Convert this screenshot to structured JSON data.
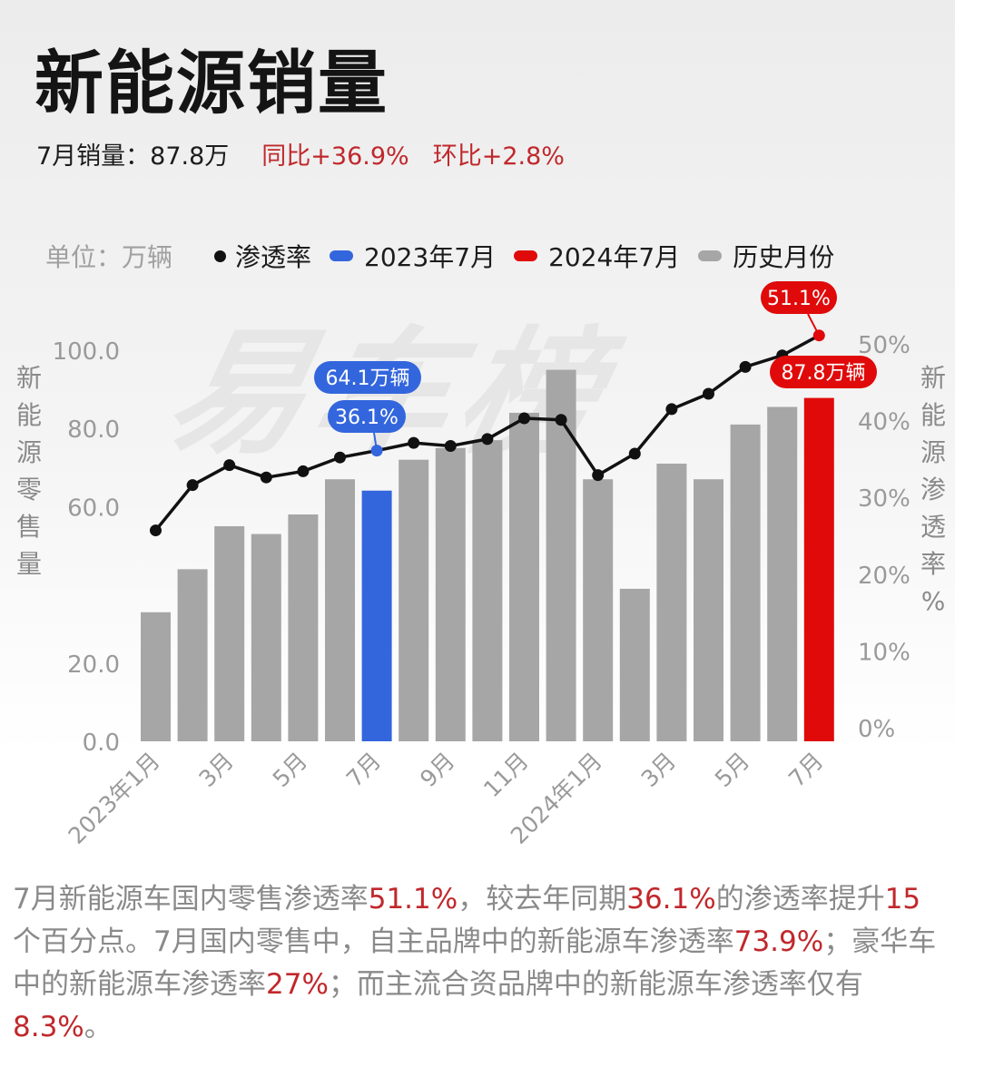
{
  "header": {
    "title": "新能源销量",
    "summary": "7月销量：87.8万",
    "yoy": "同比+36.9%",
    "mom": "环比+2.8%"
  },
  "legend": {
    "unit": "单位：万辆",
    "items": [
      "渗透率",
      "2023年7月",
      "2024年7月",
      "历史月份"
    ]
  },
  "y_axis_left_label": "新能源零售量",
  "y_axis_right_label": "新能源渗透率%",
  "colors": {
    "history": "#a6a6a6",
    "highlight_2023": "#3366dd",
    "highlight_2024": "#e00a0a",
    "line": "#111111",
    "red_text": "#c0282c"
  },
  "chart_data": {
    "type": "bar",
    "categories": [
      "2023年1月",
      "2023年2月",
      "2023年3月",
      "2023年4月",
      "2023年5月",
      "2023年6月",
      "2023年7月",
      "2023年8月",
      "2023年9月",
      "2023年10月",
      "2023年11月",
      "2023年12月",
      "2024年1月",
      "2024年2月",
      "2024年3月",
      "2024年4月",
      "2024年5月",
      "2024年6月",
      "2024年7月"
    ],
    "x_tick_labels": [
      "2023年1月",
      "",
      "3月",
      "",
      "5月",
      "",
      "7月",
      "",
      "9月",
      "",
      "11月",
      "",
      "2024年1月",
      "",
      "3月",
      "",
      "5月",
      "",
      "7月"
    ],
    "series": [
      {
        "name": "零售量",
        "axis": "left",
        "values": [
          33,
          44,
          55,
          53,
          58,
          67,
          64.1,
          72,
          75,
          77,
          84,
          95,
          67,
          39,
          71,
          67,
          81,
          85.5,
          87.8
        ],
        "highlight": {
          "6": "highlight_2023",
          "18": "highlight_2024"
        }
      },
      {
        "name": "渗透率",
        "type": "line",
        "axis": "right",
        "values": [
          25.7,
          31.6,
          34.2,
          32.6,
          33.4,
          35.2,
          36.1,
          37.1,
          36.7,
          37.6,
          40.3,
          40.1,
          32.9,
          35.7,
          41.5,
          43.5,
          47.0,
          48.5,
          51.1
        ]
      }
    ],
    "ylim": [
      0,
      100
    ],
    "y_ticks": [
      "0.0",
      "20.0",
      "",
      "60.0",
      "80.0",
      "100.0"
    ],
    "y_tick_values": [
      0,
      20,
      40,
      60,
      80,
      100
    ],
    "y2lim": [
      0,
      50
    ],
    "y2_ticks": [
      "0%",
      "10%",
      "20%",
      "30%",
      "40%",
      "50%"
    ],
    "y2_tick_values": [
      0,
      10,
      20,
      30,
      40,
      50
    ],
    "annotations": {
      "bar_2023": "64.1万辆",
      "pen_2023": "36.1%",
      "bar_2024": "87.8万辆",
      "pen_2024": "51.1%"
    },
    "grid": false,
    "legend_position": "top"
  },
  "paragraph": [
    {
      "t": "7月新能源车国内零售渗透率",
      "red": false
    },
    {
      "t": "51.1%",
      "red": true
    },
    {
      "t": "，较去年同期",
      "red": false
    },
    {
      "t": "36.1%",
      "red": true
    },
    {
      "t": "的渗透率提升",
      "red": false
    },
    {
      "t": "15",
      "red": true
    },
    {
      "t": "个百分点。7月国内零售中，自主品牌中的新能源车渗透率",
      "red": false
    },
    {
      "t": "73.9%",
      "red": true
    },
    {
      "t": "；豪华车中的新能源车渗透率",
      "red": false
    },
    {
      "t": "27%",
      "red": true
    },
    {
      "t": "；而主流合资品牌中的新能源车渗透率仅有",
      "red": false
    },
    {
      "t": "8.3%",
      "red": true
    },
    {
      "t": "。",
      "red": false
    }
  ]
}
